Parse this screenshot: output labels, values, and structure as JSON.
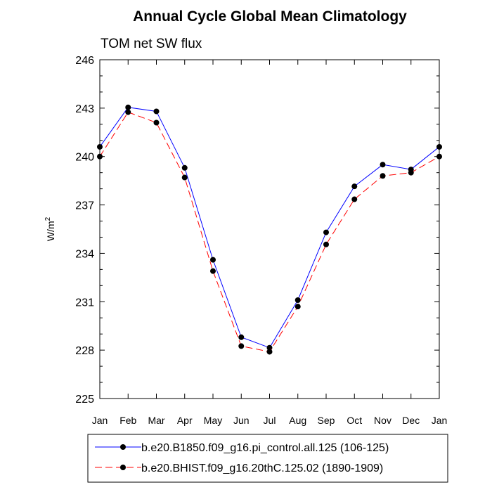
{
  "chart_data": {
    "type": "line",
    "title": "Annual Cycle Global Mean Climatology",
    "subtitle": "TOM net SW flux",
    "xlabel": "",
    "ylabel": "W/m",
    "ylabel_superscript": "2",
    "categories": [
      "Jan",
      "Feb",
      "Mar",
      "Apr",
      "May",
      "Jun",
      "Jul",
      "Aug",
      "Sep",
      "Oct",
      "Nov",
      "Dec",
      "Jan"
    ],
    "ylim": [
      225,
      246
    ],
    "yticks": [
      225,
      228,
      231,
      234,
      237,
      240,
      243,
      246
    ],
    "series": [
      {
        "name": "b.e20.B1850.f09_g16.pi_control.all.125 (106-125)",
        "color": "#0000ff",
        "dash": "solid",
        "values": [
          240.6,
          243.05,
          242.8,
          239.3,
          233.6,
          228.8,
          228.15,
          231.1,
          235.3,
          238.15,
          239.5,
          239.2,
          240.6
        ]
      },
      {
        "name": "b.e20.BHIST.f09_g16.20thC.125.02 (1890-1909)",
        "color": "#ff0000",
        "dash": "dashed",
        "values": [
          240.0,
          242.75,
          242.1,
          238.7,
          232.9,
          228.25,
          227.9,
          230.7,
          234.55,
          237.35,
          238.8,
          239.0,
          240.0
        ]
      }
    ],
    "legend_position": "bottom"
  }
}
